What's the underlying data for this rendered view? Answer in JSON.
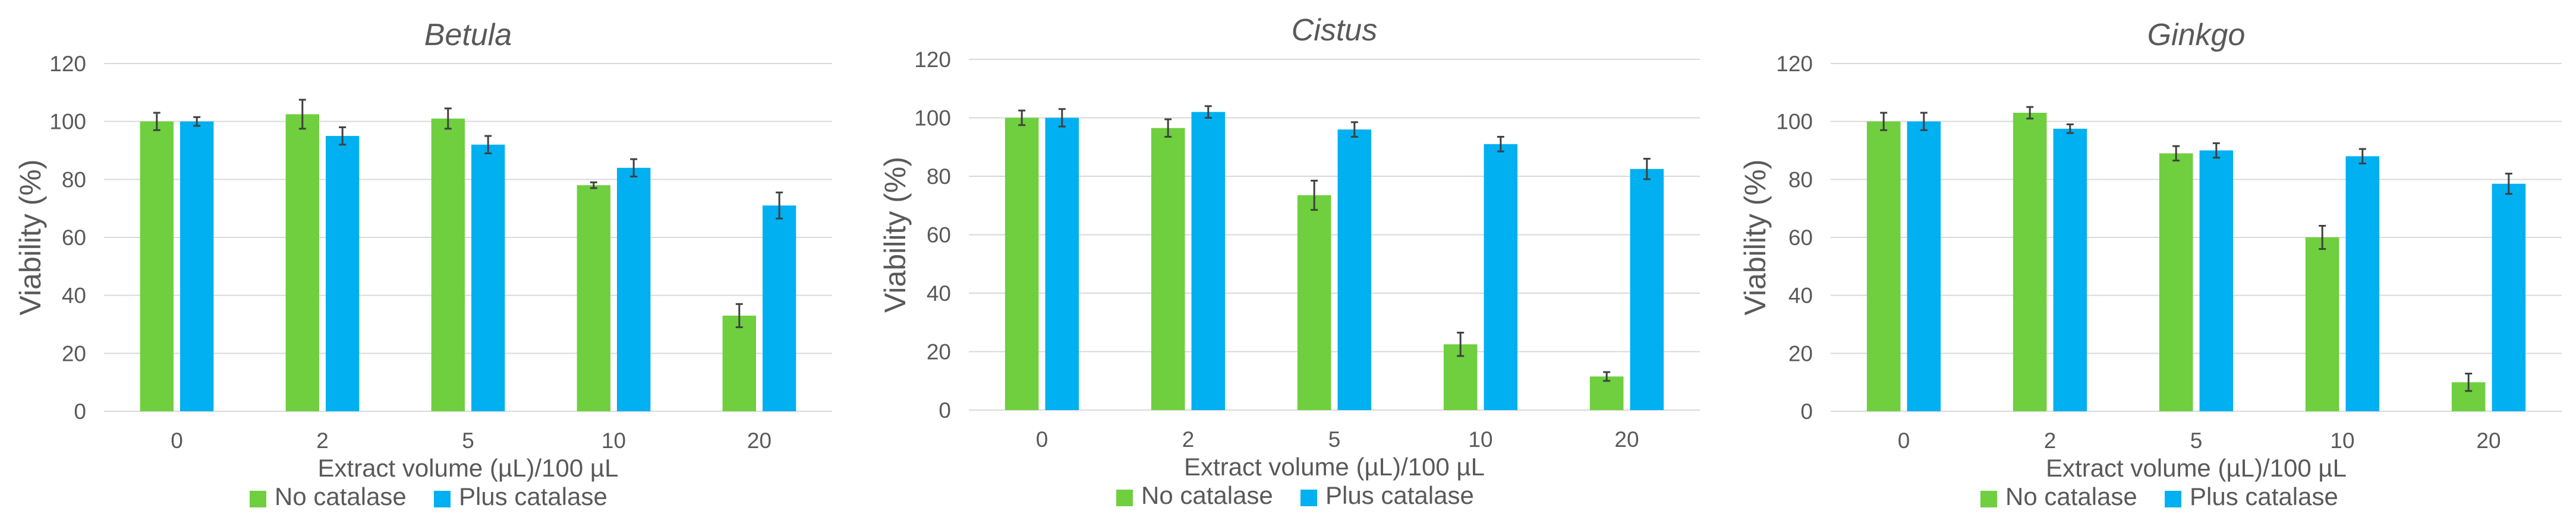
{
  "colors": {
    "no_catalase": "#6fcf3f",
    "plus_catalase": "#00b0f0"
  },
  "chart_data": [
    {
      "type": "bar",
      "title": "Betula",
      "xlabel": "Extract volume (µL)/100 µL",
      "ylabel": "Viability (%)",
      "ylim": [
        0,
        120
      ],
      "yticks": [
        "0",
        "20",
        "40",
        "60",
        "80",
        "100",
        "120"
      ],
      "categories": [
        "0",
        "2",
        "5",
        "10",
        "20"
      ],
      "grid": true,
      "legend_position": "bottom",
      "series": [
        {
          "name": "No catalase",
          "values": [
            100,
            102.5,
            101,
            78,
            33
          ],
          "errors": [
            3,
            5,
            3.5,
            1,
            4
          ]
        },
        {
          "name": "Plus catalase",
          "values": [
            100,
            95,
            92,
            84,
            71
          ],
          "errors": [
            1.5,
            3,
            3,
            3,
            4.5
          ]
        }
      ]
    },
    {
      "type": "bar",
      "title": "Cistus",
      "xlabel": "Extract volume (µL)/100 µL",
      "ylabel": "Viability (%)",
      "ylim": [
        0,
        120
      ],
      "yticks": [
        "0",
        "20",
        "40",
        "60",
        "80",
        "100",
        "120"
      ],
      "categories": [
        "0",
        "2",
        "5",
        "10",
        "20"
      ],
      "grid": true,
      "legend_position": "bottom",
      "series": [
        {
          "name": "No catalase",
          "values": [
            100,
            96.5,
            73.5,
            22.5,
            11.5
          ],
          "errors": [
            2.5,
            3,
            5,
            4,
            1.5
          ]
        },
        {
          "name": "Plus catalase",
          "values": [
            100,
            102,
            96,
            91,
            82.5
          ],
          "errors": [
            3,
            2,
            2.5,
            2.5,
            3.5
          ]
        }
      ]
    },
    {
      "type": "bar",
      "title": "Ginkgo",
      "xlabel": "Extract volume (µL)/100 µL",
      "ylabel": "Viability (%)",
      "ylim": [
        0,
        120
      ],
      "yticks": [
        "0",
        "20",
        "40",
        "60",
        "80",
        "100",
        "120"
      ],
      "categories": [
        "0",
        "2",
        "5",
        "10",
        "20"
      ],
      "grid": true,
      "legend_position": "bottom",
      "series": [
        {
          "name": "No catalase",
          "values": [
            100,
            103,
            89,
            60,
            10
          ],
          "errors": [
            3,
            2,
            2.5,
            4,
            3
          ]
        },
        {
          "name": "Plus catalase",
          "values": [
            100,
            97.5,
            90,
            88,
            78.5
          ],
          "errors": [
            3,
            1.5,
            2.5,
            2.5,
            3.5
          ]
        }
      ]
    }
  ]
}
